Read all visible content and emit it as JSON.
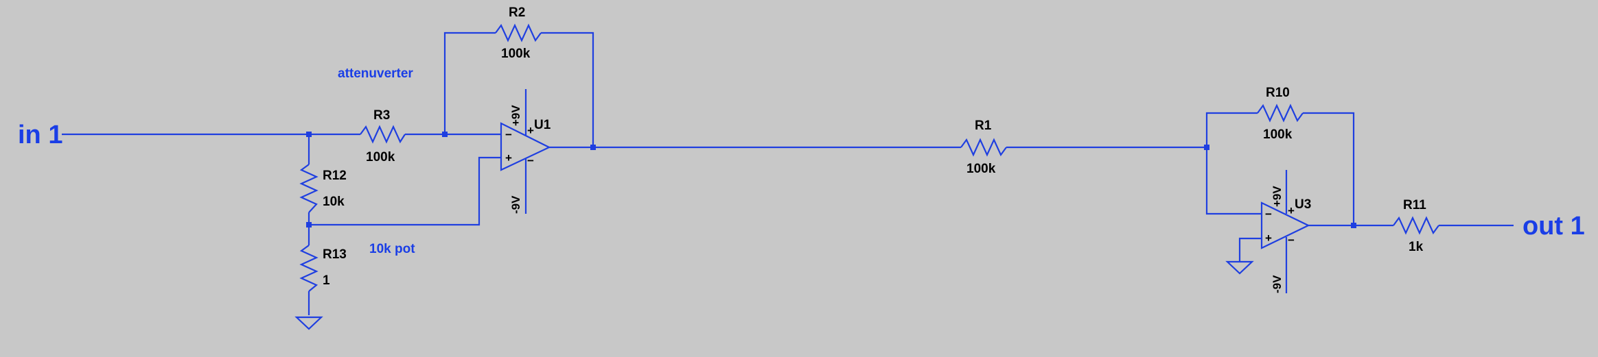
{
  "colors": {
    "background": "#c8c8c8",
    "wire": "#1f3fe0",
    "label_text": "#000000",
    "net_text": "#1a3ee6"
  },
  "ports": {
    "in": "in 1",
    "out": "out 1"
  },
  "net_labels": {
    "attenuverter": "attenuverter",
    "pot": "10k pot"
  },
  "components": {
    "R2": {
      "ref": "R2",
      "value": "100k"
    },
    "R3": {
      "ref": "R3",
      "value": "100k"
    },
    "R1": {
      "ref": "R1",
      "value": "100k"
    },
    "R10": {
      "ref": "R10",
      "value": "100k"
    },
    "R11": {
      "ref": "R11",
      "value": "1k"
    },
    "R12": {
      "ref": "R12",
      "value": "10k"
    },
    "R13": {
      "ref": "R13",
      "value": "1"
    },
    "U1": {
      "ref": "U1",
      "vpos": "+9V",
      "vneg": "-9V",
      "inv": "−",
      "noninv": "+"
    },
    "U3": {
      "ref": "U3",
      "vpos": "+9V",
      "vneg": "-9V",
      "inv": "−",
      "noninv": "+"
    }
  }
}
